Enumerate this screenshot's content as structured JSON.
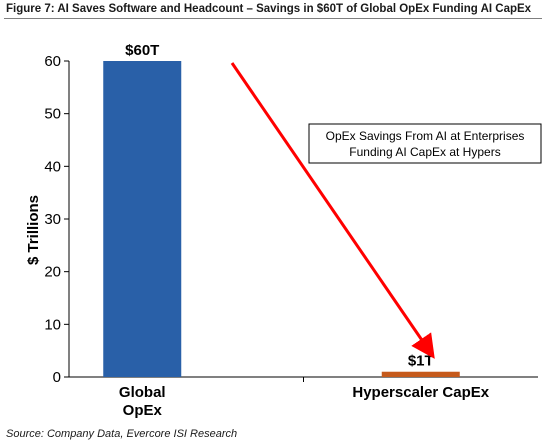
{
  "figure_title": "Figure 7: AI Saves Software and Headcount – Savings in $60T of Global OpEx Funding AI CapEx",
  "source": "Source: Company Data, Evercore ISI Research",
  "annotation": {
    "line1": "OpEx Savings From AI at Enterprises",
    "line2": "Funding AI CapEx at Hypers"
  },
  "colors": {
    "bar_primary": "#2960a8",
    "bar_secondary": "#c55a1c",
    "arrow": "#ff0000"
  },
  "chart_data": {
    "type": "bar",
    "categories": [
      [
        "Global",
        "OpEx"
      ],
      [
        "Hyperscaler CapEx"
      ]
    ],
    "values": [
      60,
      1
    ],
    "data_labels": [
      "$60T",
      "$1T"
    ],
    "ylabel": "$ Trillions",
    "ylim": [
      0,
      60
    ],
    "yticks": [
      0,
      10,
      20,
      30,
      40,
      50,
      60
    ],
    "grid": false,
    "legend": "none"
  }
}
